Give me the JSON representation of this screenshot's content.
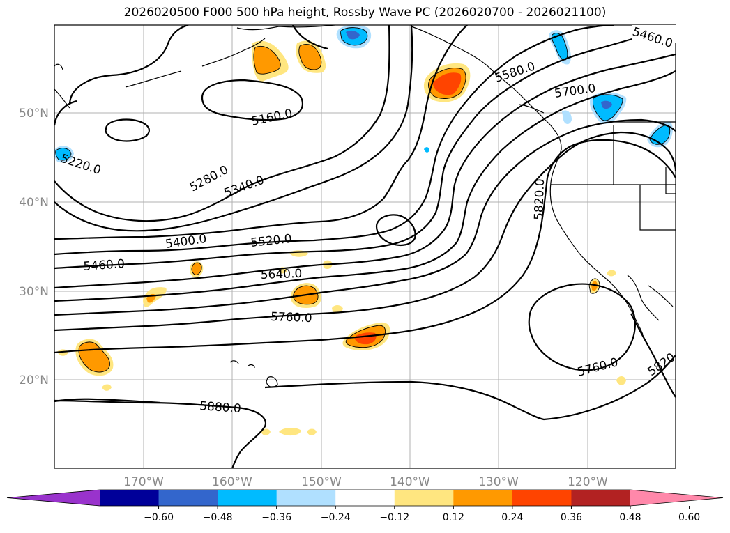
{
  "title": "2026020500 F000 500 hPa height, Rossby Wave PC (2026020700 - 2026021100)",
  "map": {
    "lat_ticks": [
      "50°N",
      "40°N",
      "30°N",
      "20°N"
    ],
    "lon_ticks": [
      "170°W",
      "160°W",
      "150°W",
      "140°W",
      "130°W",
      "120°W"
    ],
    "contour_labels": [
      "5460.0",
      "5580.0",
      "5700.0",
      "5160.0",
      "5220.0",
      "5280.0",
      "5340.0",
      "5400.0",
      "5520.0",
      "5460.0",
      "5640.0",
      "5820.0",
      "5760.0",
      "5760.0",
      "5820",
      "5880.0"
    ]
  },
  "colorbar": {
    "ticks": [
      "−0.60",
      "−0.48",
      "−0.36",
      "−0.24",
      "−0.12",
      "0.12",
      "0.24",
      "0.36",
      "0.48",
      "0.60"
    ],
    "colors": [
      "#9933cc",
      "#000099",
      "#3366cc",
      "#00bbff",
      "#b0e0ff",
      "#ffffff",
      "#ffe680",
      "#ff9900",
      "#ff4400",
      "#b22222",
      "#ff88aa"
    ]
  }
}
